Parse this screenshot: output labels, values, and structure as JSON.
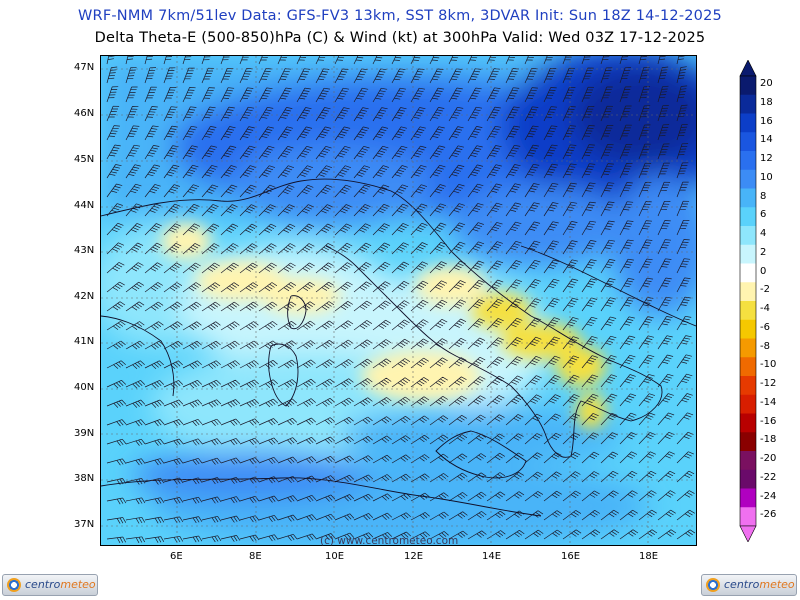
{
  "header": {
    "line1": "WRF-NMM 7km/51lev   Data: GFS-FV3 13km, SST 8km, 3DVAR   Init: Sun 18Z 14-12-2025",
    "line2": "Delta Theta-E (500-850)hPa (C) & Wind (kt) at 300hPa   Valid: Wed 03Z 17-12-2025"
  },
  "map": {
    "lat_labels": [
      "47N",
      "46N",
      "45N",
      "44N",
      "43N",
      "42N",
      "41N",
      "40N",
      "39N",
      "38N",
      "37N"
    ],
    "lon_labels": [
      "6E",
      "8E",
      "10E",
      "12E",
      "14E",
      "16E",
      "18E"
    ],
    "watermark": "(c) www.centrometeo.com"
  },
  "colorbar": {
    "levels": [
      "20",
      "18",
      "16",
      "14",
      "12",
      "10",
      "8",
      "6",
      "4",
      "2",
      "0",
      "-2",
      "-4",
      "-6",
      "-8",
      "-10",
      "-12",
      "-14",
      "-16",
      "-18",
      "-20",
      "-22",
      "-24",
      "-26"
    ],
    "colors": [
      "#0a1a6e",
      "#0a2a9a",
      "#0c3ec8",
      "#1a56e0",
      "#2a70ef",
      "#3c8cf5",
      "#48b4f8",
      "#5ad2fb",
      "#8ee6fc",
      "#c8f5fd",
      "#ffffff",
      "#fff4b0",
      "#f5e040",
      "#f5c800",
      "#f59a00",
      "#f06a00",
      "#e63a00",
      "#d81e00",
      "#b80000",
      "#8a0000",
      "#7a1060",
      "#6a0a6a",
      "#b000c0",
      "#f070f0"
    ]
  },
  "logos": {
    "brand_main": "centro",
    "brand_accent": "meteo"
  }
}
